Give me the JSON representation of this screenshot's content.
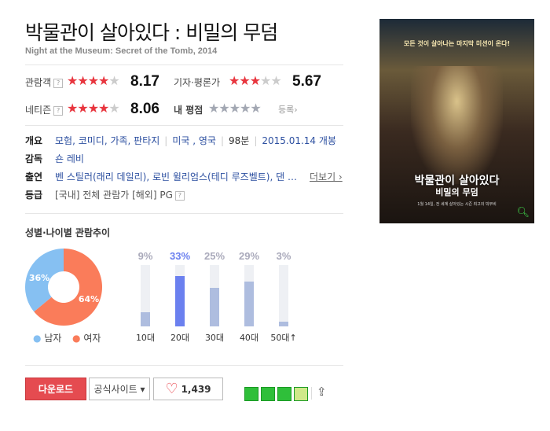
{
  "movie": {
    "title": "박물관이 살아있다 : 비밀의 무덤",
    "subtitle": "Night at the Museum: Secret of the Tomb, 2014"
  },
  "ratings": {
    "audience": {
      "label": "관람객",
      "help": "?",
      "score": "8.17",
      "stars": 4
    },
    "critic": {
      "label": "기자·평론가",
      "score": "5.67",
      "stars": 3
    },
    "netizen": {
      "label": "네티즌",
      "help": "?",
      "score": "8.06",
      "stars": 4
    },
    "mine": {
      "label": "내 평점",
      "register": "등록›",
      "stars": 0
    }
  },
  "info": {
    "overview_label": "개요",
    "genres": "모험, 코미디, 가족, 판타지",
    "country": "미국 , 영국",
    "runtime": "98분",
    "release": "2015.01.14 개봉",
    "director_label": "감독",
    "director": "숀 레비",
    "cast_label": "출연",
    "cast": "벤 스틸러(래리 데일리), 로빈 윌리엄스(테디 루즈벨트), 댄 …",
    "more": "더보기 ›",
    "grade_label": "등급",
    "grade": "[국내] 전체 관람가 [해외] PG",
    "grade_help": "?"
  },
  "chart_data": {
    "title": "성별·나이별 관람추이",
    "gender": {
      "type": "pie",
      "series": [
        {
          "name": "남자",
          "value": 36,
          "label": "36%",
          "color": "#86c0f2"
        },
        {
          "name": "여자",
          "value": 64,
          "label": "64%",
          "color": "#fa7c5a"
        }
      ]
    },
    "age": {
      "type": "bar",
      "categories": [
        "10대",
        "20대",
        "30대",
        "40대",
        "50대↑"
      ],
      "values": [
        9,
        33,
        25,
        29,
        3
      ],
      "labels": [
        "9%",
        "33%",
        "25%",
        "29%",
        "3%"
      ],
      "highlight": "20대",
      "highlight_color": "#6b80ef",
      "color": "#aebddf"
    }
  },
  "actions": {
    "download": "다운로드",
    "official": "공식사이트 ▾",
    "likes": "1,439"
  },
  "colors": {
    "accent": "#e8353e",
    "download": "#e54b50"
  },
  "poster": {
    "tagline": "모든 것이 살아나는 마지막 미션이 온다!",
    "title_line1": "박물관이 살아있다",
    "title_line2": "비밀의 무덤",
    "date": "1월 14일, 전 세계 살아있는 시즌 최고의 빅무비",
    "zoom_icon": "magnifier-icon"
  }
}
